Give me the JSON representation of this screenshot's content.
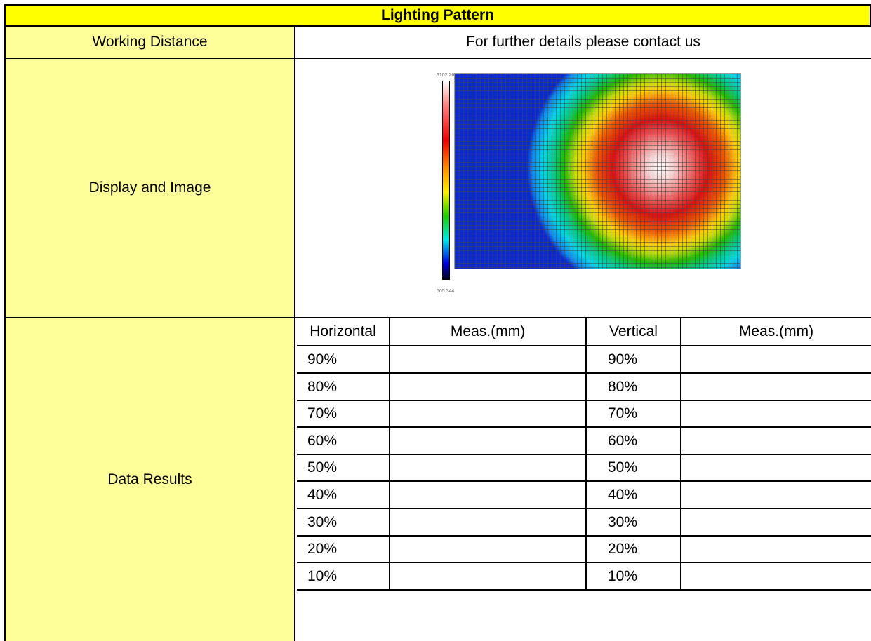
{
  "sheet": {
    "title": "Lighting Pattern",
    "rows": {
      "working_distance": {
        "label": "Working Distance",
        "value": "For further details please contact us"
      },
      "display_image": {
        "label": "Display and Image"
      },
      "data_results": {
        "label": "Data Results"
      }
    }
  },
  "heatmap": {
    "max_label": "3102.266",
    "min_label": "505.344",
    "colors": [
      "#ffffff",
      "#ff0000",
      "#ff9900",
      "#ffee00",
      "#22cc00",
      "#00e8e8",
      "#0000dd",
      "#000022"
    ]
  },
  "results_table": {
    "headers": [
      "Horizontal",
      "Meas.(mm)",
      "Vertical",
      "Meas.(mm)"
    ],
    "rows": [
      {
        "horizontal": "90%",
        "h_meas": "",
        "vertical": "90%",
        "v_meas": ""
      },
      {
        "horizontal": "80%",
        "h_meas": "",
        "vertical": "80%",
        "v_meas": ""
      },
      {
        "horizontal": "70%",
        "h_meas": "",
        "vertical": "70%",
        "v_meas": ""
      },
      {
        "horizontal": "60%",
        "h_meas": "",
        "vertical": "60%",
        "v_meas": ""
      },
      {
        "horizontal": "50%",
        "h_meas": "",
        "vertical": "50%",
        "v_meas": ""
      },
      {
        "horizontal": "40%",
        "h_meas": "",
        "vertical": "40%",
        "v_meas": ""
      },
      {
        "horizontal": "30%",
        "h_meas": "",
        "vertical": "30%",
        "v_meas": ""
      },
      {
        "horizontal": "20%",
        "h_meas": "",
        "vertical": "20%",
        "v_meas": ""
      },
      {
        "horizontal": "10%",
        "h_meas": "",
        "vertical": "10%",
        "v_meas": ""
      }
    ]
  },
  "colors": {
    "header_fill": "#ffff00",
    "label_fill": "#ffff99",
    "border": "#000000"
  }
}
